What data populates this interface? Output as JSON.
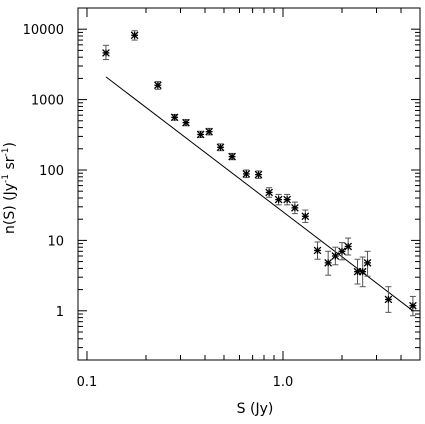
{
  "chart_data": {
    "type": "scatter",
    "title": "",
    "xlabel": "S (Jy)",
    "ylabel_parts": {
      "main": "n(S)  (Jy",
      "exp1": "-1",
      "mid": " sr",
      "exp2": "-1",
      "close": ")"
    },
    "x_scale": "log",
    "y_scale": "log",
    "xlim": [
      0.09,
      5.0
    ],
    "ylim": [
      0.2,
      20000
    ],
    "xticks": [
      {
        "value": 0.1,
        "label": "0.1"
      },
      {
        "value": 1.0,
        "label": "1.0"
      }
    ],
    "yticks": [
      {
        "value": 1,
        "label": "1"
      },
      {
        "value": 10,
        "label": "10"
      },
      {
        "value": 100,
        "label": "100"
      },
      {
        "value": 1000,
        "label": "1000"
      },
      {
        "value": 10000,
        "label": "10000"
      }
    ],
    "grid": false,
    "points": [
      {
        "x": 0.125,
        "y": 4600,
        "lo": 3700,
        "hi": 5900
      },
      {
        "x": 0.175,
        "y": 8200,
        "lo": 7000,
        "hi": 9500
      },
      {
        "x": 0.23,
        "y": 1600,
        "lo": 1400,
        "hi": 1800
      },
      {
        "x": 0.28,
        "y": 560,
        "lo": 510,
        "hi": 615
      },
      {
        "x": 0.32,
        "y": 470,
        "lo": 425,
        "hi": 520
      },
      {
        "x": 0.38,
        "y": 320,
        "lo": 290,
        "hi": 355
      },
      {
        "x": 0.42,
        "y": 350,
        "lo": 315,
        "hi": 390
      },
      {
        "x": 0.48,
        "y": 210,
        "lo": 188,
        "hi": 235
      },
      {
        "x": 0.55,
        "y": 155,
        "lo": 140,
        "hi": 172
      },
      {
        "x": 0.65,
        "y": 88,
        "lo": 78,
        "hi": 100
      },
      {
        "x": 0.75,
        "y": 86,
        "lo": 76,
        "hi": 97
      },
      {
        "x": 0.85,
        "y": 48,
        "lo": 41,
        "hi": 56
      },
      {
        "x": 0.95,
        "y": 38,
        "lo": 32,
        "hi": 45
      },
      {
        "x": 1.05,
        "y": 38,
        "lo": 32,
        "hi": 45
      },
      {
        "x": 1.15,
        "y": 29,
        "lo": 24,
        "hi": 35
      },
      {
        "x": 1.3,
        "y": 22,
        "lo": 18,
        "hi": 27
      },
      {
        "x": 1.5,
        "y": 7.2,
        "lo": 5.4,
        "hi": 9.5
      },
      {
        "x": 1.7,
        "y": 4.8,
        "lo": 3.2,
        "hi": 7.0
      },
      {
        "x": 1.85,
        "y": 6.0,
        "lo": 4.5,
        "hi": 8.0
      },
      {
        "x": 2.0,
        "y": 7.0,
        "lo": 5.3,
        "hi": 9.3
      },
      {
        "x": 2.15,
        "y": 8.2,
        "lo": 6.2,
        "hi": 10.8
      },
      {
        "x": 2.4,
        "y": 3.6,
        "lo": 2.4,
        "hi": 5.4
      },
      {
        "x": 2.55,
        "y": 3.6,
        "lo": 2.2,
        "hi": 5.8
      },
      {
        "x": 2.7,
        "y": 4.8,
        "lo": 3.1,
        "hi": 7.0
      },
      {
        "x": 3.45,
        "y": 1.45,
        "lo": 0.95,
        "hi": 2.2
      },
      {
        "x": 4.6,
        "y": 1.18,
        "lo": 0.85,
        "hi": 1.6
      }
    ],
    "fit_line": {
      "x": [
        0.125,
        4.6
      ],
      "y": [
        2100,
        1.0
      ]
    }
  }
}
